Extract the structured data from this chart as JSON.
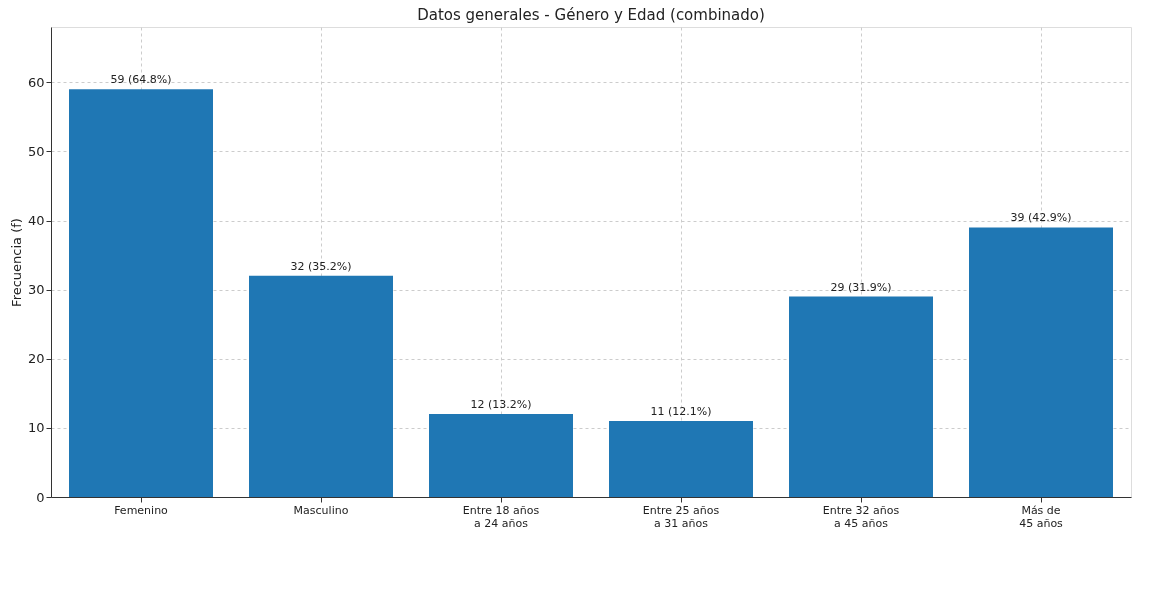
{
  "chart_data": {
    "type": "bar",
    "title": "Datos generales - Género y Edad (combinado)",
    "ylabel": "Frecuencia (f)",
    "categories": [
      "Femenino",
      "Masculino",
      "Entre 18 años\na 24 años",
      "Entre 25 años\na 31 años",
      "Entre 32 años\na 45 años",
      "Más de\n45 años"
    ],
    "values": [
      59,
      32,
      12,
      11,
      29,
      39
    ],
    "value_labels": [
      "59 (64.8%)",
      "32 (35.2%)",
      "12 (13.2%)",
      "11 (12.1%)",
      "29 (31.9%)",
      "39 (42.9%)"
    ],
    "color": "#1f77b4",
    "ylim": [
      0,
      68
    ],
    "yticks": [
      0,
      10,
      20,
      30,
      40,
      50,
      60
    ],
    "grid": true
  }
}
